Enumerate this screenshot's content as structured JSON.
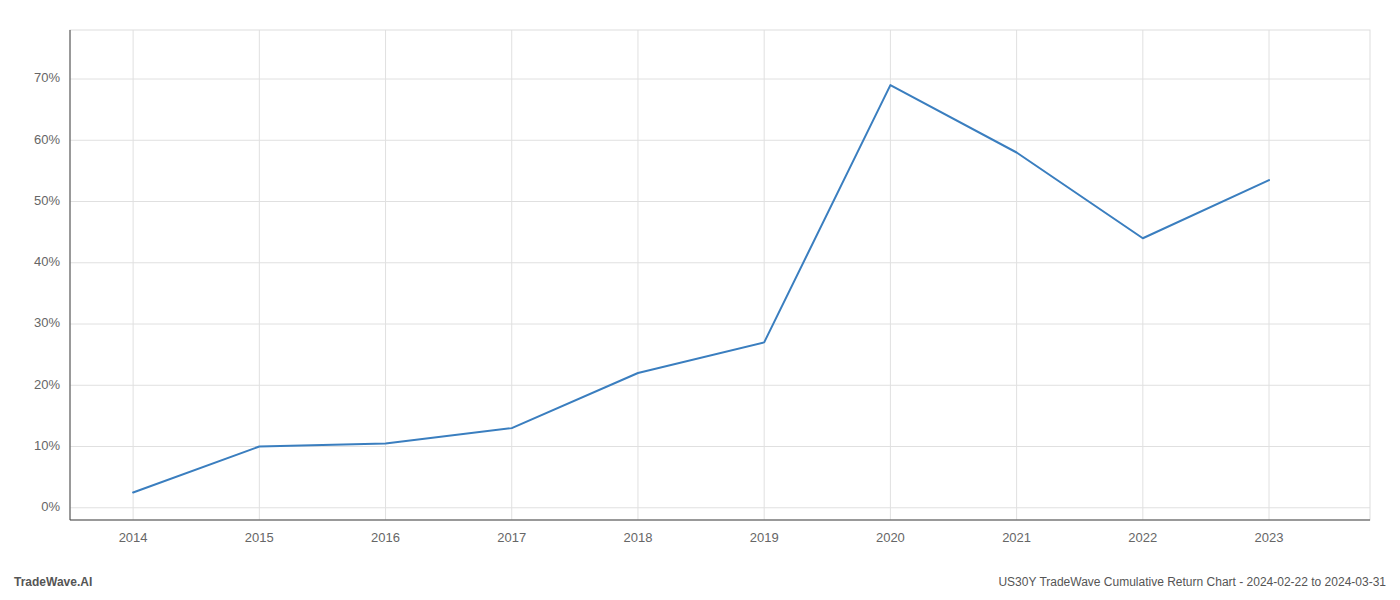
{
  "chart_data": {
    "type": "line",
    "x": [
      2014,
      2015,
      2016,
      2017,
      2018,
      2019,
      2020,
      2021,
      2022,
      2023
    ],
    "values": [
      2.5,
      10.0,
      10.5,
      13.0,
      22.0,
      27.0,
      69.0,
      58.0,
      44.0,
      53.5
    ],
    "color": "#3a7ebf",
    "xlim": [
      2013.5,
      2023.8
    ],
    "xticks": [
      2014,
      2015,
      2016,
      2017,
      2018,
      2019,
      2020,
      2021,
      2022,
      2023
    ],
    "ylim": [
      -2,
      78
    ],
    "yticks": [
      {
        "value": 0,
        "label": "0%"
      },
      {
        "value": 10,
        "label": "10%"
      },
      {
        "value": 20,
        "label": "20%"
      },
      {
        "value": 30,
        "label": "30%"
      },
      {
        "value": 40,
        "label": "40%"
      },
      {
        "value": 50,
        "label": "50%"
      },
      {
        "value": 60,
        "label": "60%"
      },
      {
        "value": 70,
        "label": "70%"
      }
    ],
    "grid": true,
    "annotations": [
      "TradeWave.AI",
      "US30Y TradeWave Cumulative Return Chart - 2024-02-22 to 2024-03-31"
    ]
  }
}
